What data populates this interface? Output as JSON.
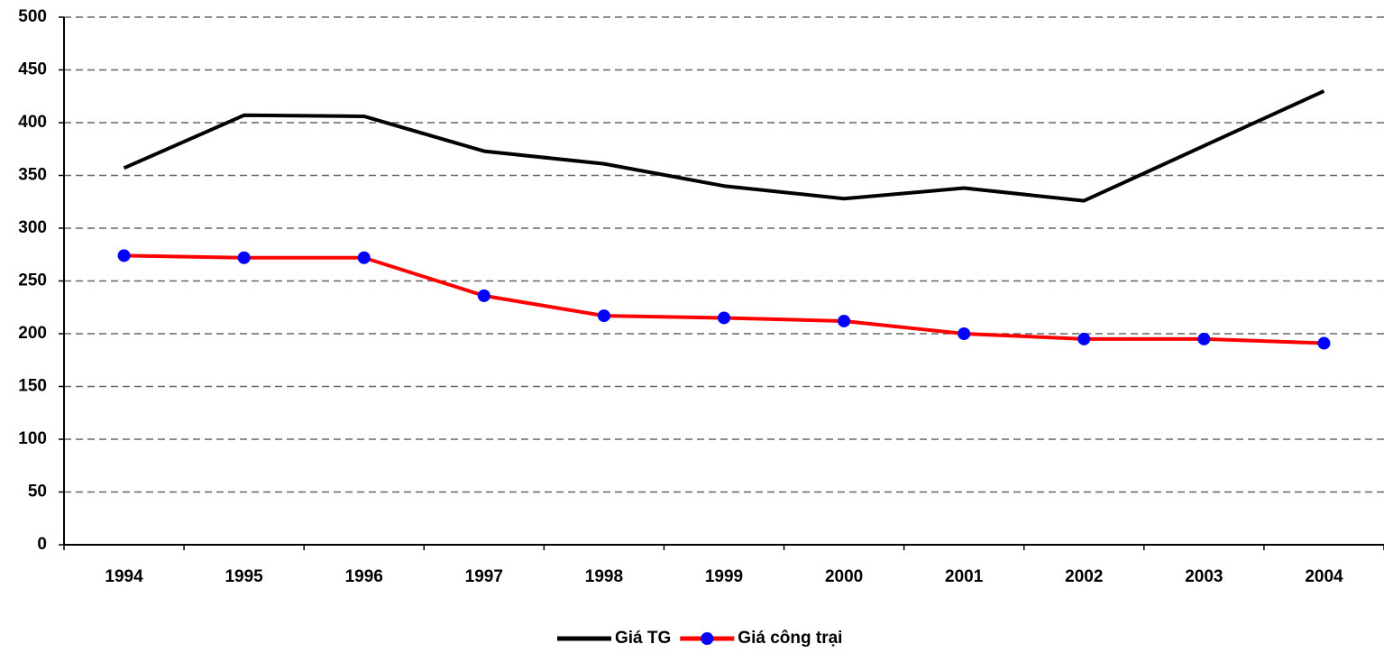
{
  "chart_data": {
    "type": "line",
    "categories": [
      "1994",
      "1995",
      "1996",
      "1997",
      "1998",
      "1999",
      "2000",
      "2001",
      "2002",
      "2003",
      "2004"
    ],
    "series": [
      {
        "name": "Giá TG",
        "color": "#000000",
        "values": [
          357,
          407,
          406,
          373,
          361,
          340,
          328,
          338,
          326,
          378,
          430
        ]
      },
      {
        "name": "Giá công trại",
        "color": "#ff0000",
        "marker_color": "#0000ff",
        "values": [
          274,
          272,
          272,
          236,
          217,
          215,
          212,
          200,
          195,
          195,
          191
        ]
      }
    ],
    "ylim": [
      0,
      500
    ],
    "yticks": [
      0,
      50,
      100,
      150,
      200,
      250,
      300,
      350,
      400,
      450,
      500
    ],
    "grid": true,
    "legend": "bottom"
  }
}
